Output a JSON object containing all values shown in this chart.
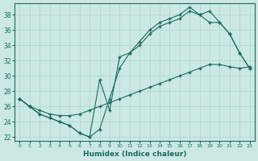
{
  "title": "",
  "xlabel": "Humidex (Indice chaleur)",
  "ylabel": "",
  "bg_color": "#cce8e4",
  "line_color": "#1a6b5e",
  "grid_color": "#aad4ce",
  "xlim": [
    -0.5,
    23.5
  ],
  "ylim": [
    21.5,
    39.5
  ],
  "xticks": [
    0,
    1,
    2,
    3,
    4,
    5,
    6,
    7,
    8,
    9,
    10,
    11,
    12,
    13,
    14,
    15,
    16,
    17,
    18,
    19,
    20,
    21,
    22,
    23
  ],
  "yticks": [
    22,
    24,
    26,
    28,
    30,
    32,
    34,
    36,
    38
  ],
  "line1_x": [
    0,
    1,
    2,
    3,
    4,
    5,
    6,
    7,
    8,
    9,
    10,
    11,
    12,
    13,
    14,
    15,
    16,
    17,
    18,
    19,
    20,
    21,
    22,
    23
  ],
  "line1_y": [
    27,
    26,
    25,
    24.5,
    24,
    23.5,
    22.5,
    22,
    23,
    27,
    31,
    33,
    34,
    35.5,
    36.5,
    37,
    37.5,
    38.5,
    38,
    38.5,
    37,
    35.5,
    33,
    31
  ],
  "line2_x": [
    0,
    1,
    2,
    3,
    4,
    5,
    6,
    7,
    8,
    9,
    10,
    11,
    12,
    13,
    14,
    15,
    16,
    17,
    18,
    19,
    20,
    21,
    22,
    23
  ],
  "line2_y": [
    27,
    26,
    25,
    24.5,
    24,
    23.5,
    22.5,
    22,
    29.5,
    25.5,
    32.5,
    33,
    34.5,
    36,
    37,
    37.5,
    38,
    39,
    38,
    37,
    37,
    35.5,
    33,
    31
  ],
  "line3_x": [
    0,
    1,
    2,
    3,
    4,
    5,
    6,
    7,
    8,
    9,
    10,
    11,
    12,
    13,
    14,
    15,
    16,
    17,
    18,
    19,
    20,
    21,
    22,
    23
  ],
  "line3_y": [
    27,
    26,
    25.5,
    25,
    24.8,
    24.8,
    25,
    25.5,
    26,
    26.5,
    27,
    27.5,
    28,
    28.5,
    29,
    29.5,
    30,
    30.5,
    31,
    31.5,
    31.5,
    31.2,
    31,
    31.2
  ]
}
